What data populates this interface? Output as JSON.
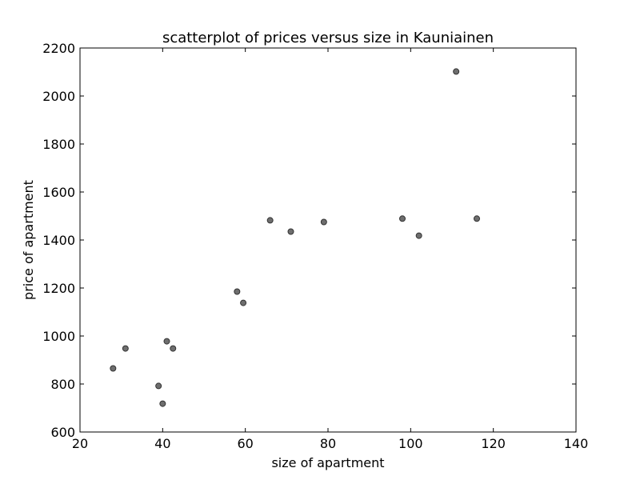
{
  "chart_data": {
    "type": "scatter",
    "title": "scatterplot of prices versus size in Kauniainen",
    "xlabel": "size of apartment",
    "ylabel": "price of apartment",
    "xlim": [
      20,
      140
    ],
    "ylim": [
      600,
      2200
    ],
    "xticks": [
      20,
      40,
      60,
      80,
      100,
      120,
      140
    ],
    "yticks": [
      600,
      800,
      1000,
      1200,
      1400,
      1600,
      1800,
      2000,
      2200
    ],
    "grid": false,
    "point_color": "#555555",
    "points": [
      {
        "x": 28,
        "y": 865
      },
      {
        "x": 31,
        "y": 948
      },
      {
        "x": 39,
        "y": 792
      },
      {
        "x": 40,
        "y": 718
      },
      {
        "x": 41,
        "y": 978
      },
      {
        "x": 42.5,
        "y": 948
      },
      {
        "x": 58,
        "y": 1185
      },
      {
        "x": 59.5,
        "y": 1138
      },
      {
        "x": 66,
        "y": 1482
      },
      {
        "x": 71,
        "y": 1435
      },
      {
        "x": 79,
        "y": 1475
      },
      {
        "x": 98,
        "y": 1489
      },
      {
        "x": 102,
        "y": 1418
      },
      {
        "x": 111,
        "y": 2102
      },
      {
        "x": 116,
        "y": 1489
      }
    ]
  }
}
